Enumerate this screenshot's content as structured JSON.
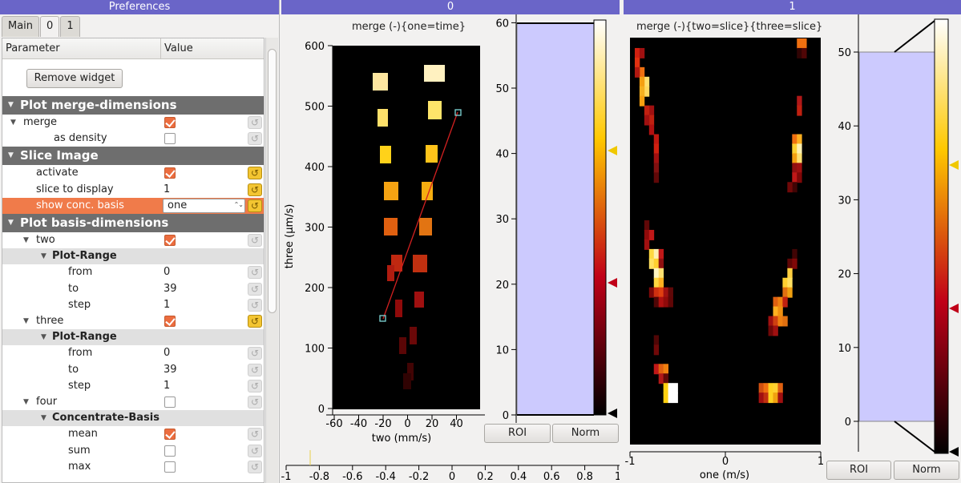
{
  "prefs": {
    "title": "Preferences",
    "tabs": [
      "Main",
      "0",
      "1"
    ],
    "headers": {
      "param": "Parameter",
      "value": "Value"
    },
    "remove_btn": "Remove widget",
    "rows": [
      {
        "kind": "group",
        "label": "Plot merge-dimensions"
      },
      {
        "kind": "item",
        "label": "merge",
        "check": true
      },
      {
        "kind": "item",
        "label": "as density",
        "check": false
      },
      {
        "kind": "group",
        "label": "Slice Image"
      },
      {
        "kind": "item",
        "label": "activate",
        "check": true,
        "reset": "y"
      },
      {
        "kind": "item",
        "label": "slice to display",
        "value": "1",
        "reset": "y"
      },
      {
        "kind": "item",
        "label": "show conc. basis",
        "combo": "one",
        "reset": "y",
        "selected": true
      },
      {
        "kind": "group",
        "label": "Plot basis-dimensions"
      },
      {
        "kind": "item",
        "label": "two",
        "check": true
      },
      {
        "kind": "sub",
        "label": "Plot-Range"
      },
      {
        "kind": "item",
        "label": "from",
        "value": "0"
      },
      {
        "kind": "item",
        "label": "to",
        "value": "39"
      },
      {
        "kind": "item",
        "label": "step",
        "value": "1"
      },
      {
        "kind": "item",
        "label": "three",
        "check": true,
        "reset": "y"
      },
      {
        "kind": "sub",
        "label": "Plot-Range"
      },
      {
        "kind": "item",
        "label": "from",
        "value": "0"
      },
      {
        "kind": "item",
        "label": "to",
        "value": "39"
      },
      {
        "kind": "item",
        "label": "step",
        "value": "1"
      },
      {
        "kind": "item",
        "label": "four",
        "check": false
      },
      {
        "kind": "sub",
        "label": "Concentrate-Basis"
      },
      {
        "kind": "item",
        "label": "mean",
        "check": true
      },
      {
        "kind": "item",
        "label": "sum",
        "check": false
      },
      {
        "kind": "item",
        "label": "max",
        "check": false
      }
    ]
  },
  "dock0": {
    "title": "0",
    "plot_title": "merge (-){one=time}",
    "xlabel": "two (mm/s)",
    "ylabel": "three (µm/s)",
    "xticks": [
      "-60",
      "-40",
      "-20",
      "0",
      "20",
      "40"
    ],
    "yticks": [
      "0",
      "100",
      "200",
      "300",
      "400",
      "500",
      "600"
    ],
    "hist_ticks": [
      "0",
      "10",
      "20",
      "30",
      "40",
      "50",
      "60"
    ],
    "roi": "ROI",
    "norm": "Norm",
    "bottom_ticks": [
      "-1",
      "-0.8",
      "-0.6",
      "-0.4",
      "-0.2",
      "0",
      "0.2",
      "0.4",
      "0.6",
      "0.8",
      "1"
    ],
    "line_label": "ROI line",
    "colors": {
      "roi_line": "#d22020",
      "handle": "#7fd6d6"
    }
  },
  "dock1": {
    "title": "1",
    "plot_title": "merge (-){two=slice}{three=slice}",
    "xlabel": "one (m/s)",
    "xticks": [
      "-1",
      "0",
      "1"
    ],
    "hist_ticks": [
      "0",
      "10",
      "20",
      "30",
      "40",
      "50"
    ],
    "roi": "ROI",
    "norm": "Norm"
  },
  "colors": {
    "title_bar": "#6a65c8",
    "hist_fill": "#cccafe",
    "marker_yellow": "#f0c800",
    "marker_red": "#c00018"
  }
}
